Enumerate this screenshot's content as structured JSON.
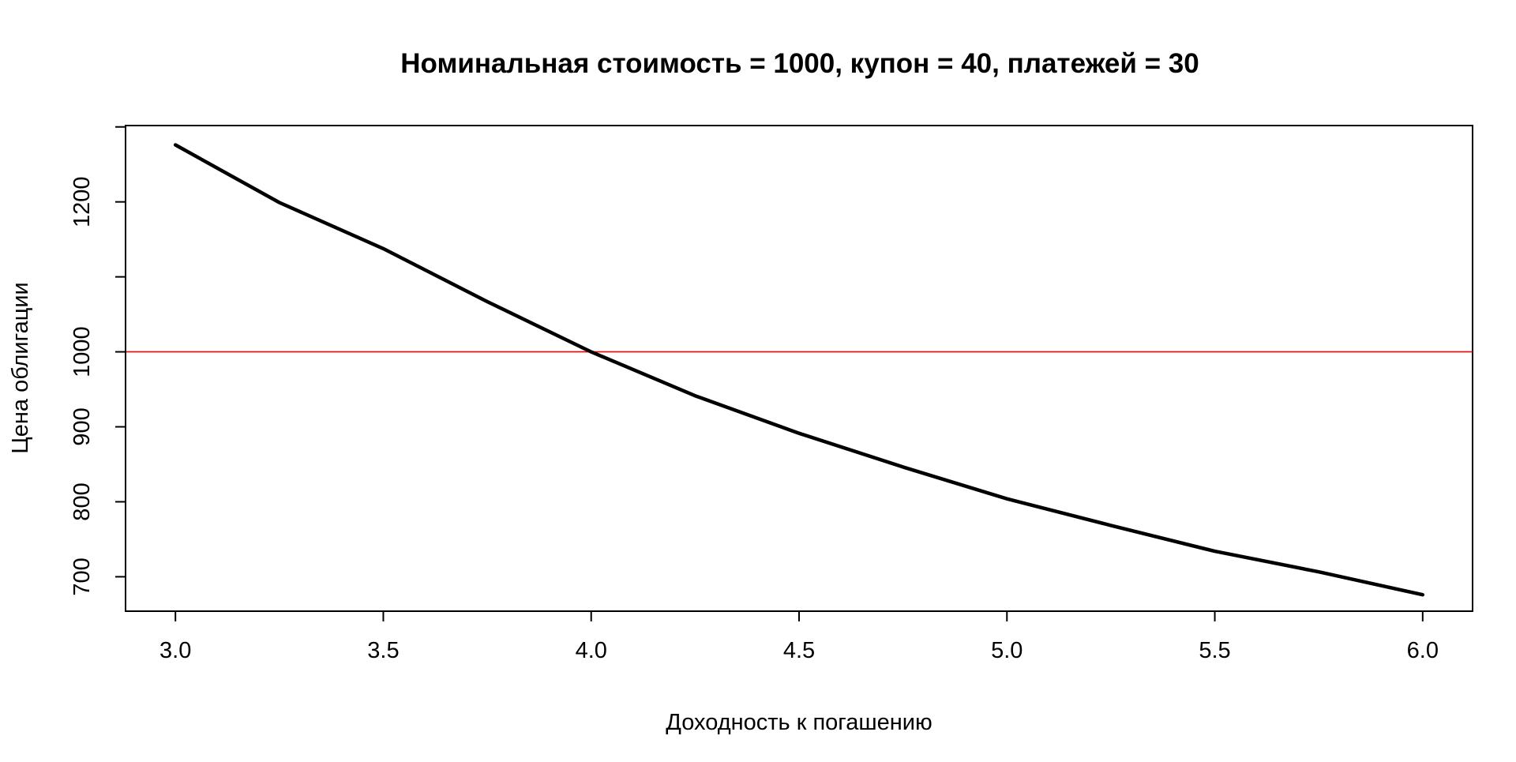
{
  "chart_data": {
    "type": "line",
    "title": "Номинальная стоимость = 1000, купон = 40, платежей = 30",
    "xlabel": "Доходность к погашению",
    "ylabel": "Цена облигации",
    "xlim": [
      2.88,
      6.12
    ],
    "ylim": [
      654.1,
      1301.8
    ],
    "x_ticks": [
      3.0,
      3.5,
      4.0,
      4.5,
      5.0,
      5.5,
      6.0
    ],
    "x_tick_labels": [
      "3.0",
      "3.5",
      "4.0",
      "4.5",
      "5.0",
      "5.5",
      "6.0"
    ],
    "y_ticks": [
      700,
      800,
      900,
      1000,
      1100,
      1200,
      1300
    ],
    "y_tick_labels": [
      "700",
      "800",
      "900",
      "1000",
      "",
      "1200",
      ""
    ],
    "grid": false,
    "series": [
      {
        "color": "#000000",
        "x": [
          3.0,
          3.25,
          3.5,
          3.75,
          4.0,
          4.25,
          4.5,
          4.75,
          5.0,
          5.25,
          5.5,
          5.75,
          6.0
        ],
        "y": [
          1276.0,
          1199.1,
          1137.6,
          1066.9,
          1000.0,
          941.4,
          891.4,
          846.4,
          804.0,
          768.5,
          734.0,
          706.6,
          676.0
        ]
      }
    ],
    "reference_lines": [
      {
        "axis": "y",
        "value": 1000,
        "color": "#ff0000"
      }
    ]
  }
}
